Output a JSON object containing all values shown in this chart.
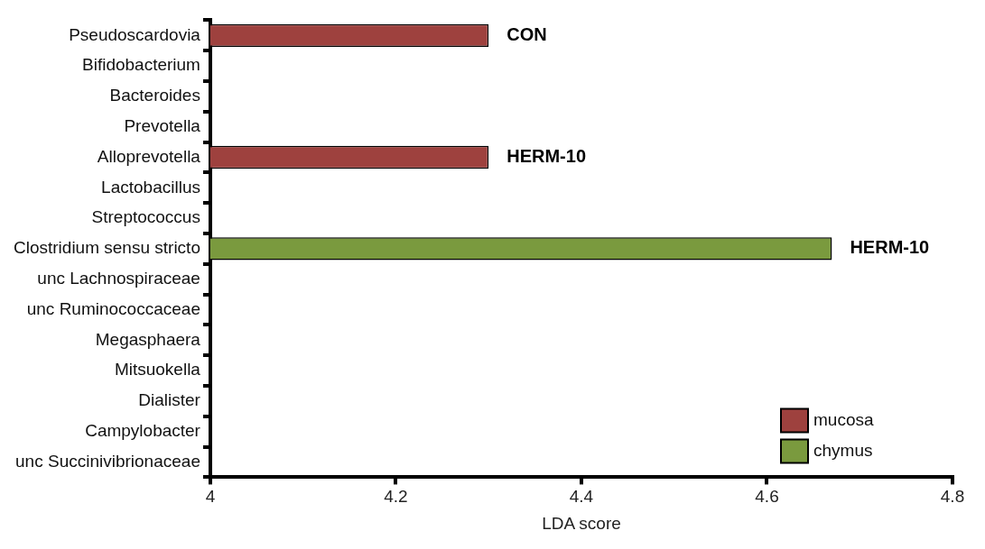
{
  "chart_data": {
    "type": "bar",
    "orientation": "horizontal",
    "xlabel": "LDA score",
    "categories": [
      "Pseudoscardovia",
      "Bifidobacterium",
      "Bacteroides",
      "Prevotella",
      "Alloprevotella",
      "Lactobacillus",
      "Streptococcus",
      "Clostridium sensu stricto",
      "unc Lachnospiraceae",
      "unc Ruminococcaceae",
      "Megasphaera",
      "Mitsuokella",
      "Dialister",
      "Campylobacter",
      "unc Succinivibrionaceae"
    ],
    "series": [
      {
        "name": "mucosa",
        "color": "#9e413e",
        "values": [
          4.3,
          null,
          null,
          null,
          4.3,
          null,
          null,
          null,
          null,
          null,
          null,
          null,
          null,
          null,
          null
        ],
        "value_labels": [
          "CON",
          null,
          null,
          null,
          "HERM-10",
          null,
          null,
          null,
          null,
          null,
          null,
          null,
          null,
          null,
          null
        ]
      },
      {
        "name": "chymus",
        "color": "#7a9a3e",
        "values": [
          null,
          null,
          null,
          null,
          null,
          null,
          null,
          4.67,
          null,
          null,
          null,
          null,
          null,
          null,
          null
        ],
        "value_labels": [
          null,
          null,
          null,
          null,
          null,
          null,
          null,
          "HERM-10",
          null,
          null,
          null,
          null,
          null,
          null,
          null
        ]
      }
    ],
    "xlim": [
      4,
      4.8
    ],
    "xticks": [
      4,
      4.2,
      4.4,
      4.6,
      4.8
    ],
    "grid": false,
    "legend": "bottom right"
  }
}
